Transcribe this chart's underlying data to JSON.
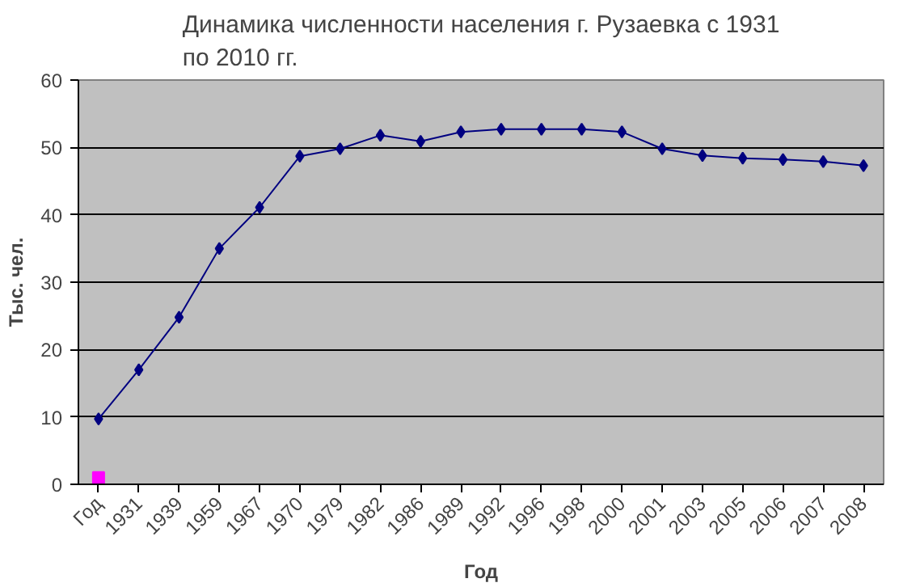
{
  "chart_data": {
    "type": "line",
    "title": "Динамика численности населения г. Рузаевка с 1931\nпо 2010 гг.",
    "xlabel": "Год",
    "ylabel": "Тыс. чел.",
    "categories": [
      "Год",
      "1931",
      "1939",
      "1959",
      "1967",
      "1970",
      "1979",
      "1982",
      "1986",
      "1989",
      "1992",
      "1996",
      "1998",
      "2000",
      "2001",
      "2003",
      "2005",
      "2006",
      "2007",
      "2008"
    ],
    "series": [
      {
        "color": "#000080",
        "marker": "diamond",
        "values": [
          9.7,
          17.0,
          24.8,
          35.0,
          41.1,
          48.7,
          49.8,
          51.8,
          50.9,
          52.3,
          52.7,
          52.7,
          52.7,
          52.3,
          49.8,
          48.8,
          48.4,
          48.2,
          47.9,
          47.3
        ]
      },
      {
        "type": "scatter",
        "color": "#ff00ff",
        "marker": "square",
        "values": [
          1.0,
          null,
          null,
          null,
          null,
          null,
          null,
          null,
          null,
          null,
          null,
          null,
          null,
          null,
          null,
          null,
          null,
          null,
          null,
          null
        ]
      }
    ],
    "ylim": [
      0,
      60
    ],
    "yticks": [
      0,
      10,
      20,
      30,
      40,
      50,
      60
    ],
    "grid": "y"
  }
}
